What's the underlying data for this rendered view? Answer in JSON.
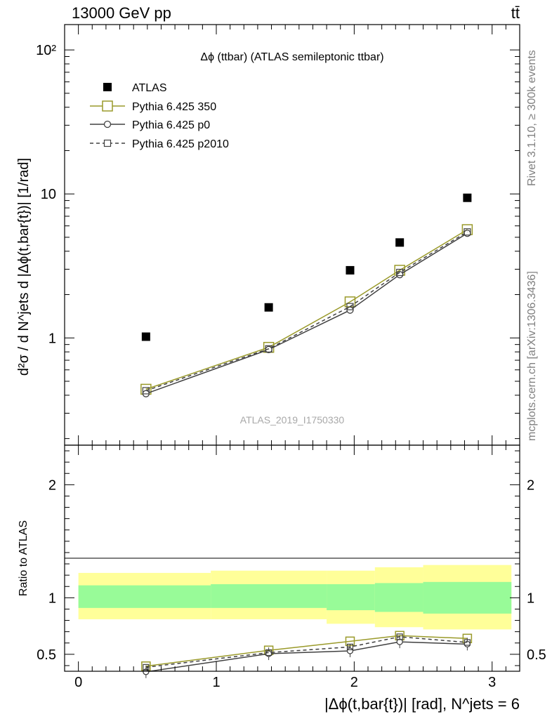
{
  "header": {
    "energy_label": "13000 GeV pp",
    "process_label": "tt̄"
  },
  "side_labels": {
    "rivet": "Rivet 3.1.10, ≥ 300k events",
    "mcplots": "mcplots.cern.ch [arXiv:1306.3436]"
  },
  "watermark": "ATLAS_2019_I1750330",
  "chart_data": [
    {
      "type": "scatter",
      "panel": "main",
      "title": "Δϕ (ttbar) (ATLAS semileptonic ttbar)",
      "ylabel": "d²σ / d N^jets d |Δϕ(t,bar{t})| [1/rad]",
      "yscale": "log",
      "xlim": [
        -0.1,
        3.2
      ],
      "ylim": [
        0.18,
        150
      ],
      "ytick_labels": [
        "1",
        "10",
        "10²"
      ],
      "legend_position": "top-left",
      "x": [
        0.49,
        1.38,
        1.97,
        2.33,
        2.82
      ],
      "series": [
        {
          "name": "ATLAS",
          "style": "data",
          "color": "#000000",
          "values": [
            1.02,
            1.63,
            2.95,
            4.6,
            9.4
          ]
        },
        {
          "name": "Pythia 6.425 350",
          "style": "line-open-square",
          "color": "#9a9a2a",
          "values": [
            0.44,
            0.86,
            1.78,
            2.95,
            5.65
          ]
        },
        {
          "name": "Pythia 6.425 p0",
          "style": "line-open-circle",
          "color": "#404040",
          "values": [
            0.41,
            0.83,
            1.56,
            2.75,
            5.33
          ]
        },
        {
          "name": "Pythia 6.425 p2010",
          "style": "dashed-open-square",
          "color": "#404040",
          "values": [
            0.43,
            0.84,
            1.65,
            2.85,
            5.45
          ]
        }
      ]
    },
    {
      "type": "line",
      "panel": "ratio",
      "ylabel": "Ratio to ATLAS",
      "xlabel": "|Δϕ(t,bar{t})| [rad], N^jets = 6",
      "xlim": [
        -0.1,
        3.2
      ],
      "ylim": [
        0.35,
        2.35
      ],
      "xtick_labels": [
        "0",
        "1",
        "2",
        "3"
      ],
      "ytick_labels": [
        "0.5",
        "1",
        "2"
      ],
      "bin_edges": [
        0.0,
        0.96,
        1.8,
        2.15,
        2.5,
        3.14
      ],
      "bands": {
        "stat": {
          "color": "#98fb98",
          "lower": [
            0.91,
            0.91,
            0.89,
            0.875,
            0.86
          ],
          "upper": [
            1.11,
            1.12,
            1.12,
            1.13,
            1.14
          ]
        },
        "total": {
          "color": "#ffff99",
          "lower": [
            0.81,
            0.81,
            0.77,
            0.74,
            0.72
          ],
          "upper": [
            1.22,
            1.24,
            1.24,
            1.27,
            1.29
          ]
        }
      },
      "x": [
        0.49,
        1.38,
        1.97,
        2.33,
        2.82
      ],
      "series": [
        {
          "name": "Pythia 6.425 350",
          "color": "#9a9a2a",
          "values": [
            0.395,
            0.535,
            0.615,
            0.665,
            0.64
          ]
        },
        {
          "name": "Pythia 6.425 p0",
          "color": "#404040",
          "values": [
            0.345,
            0.505,
            0.53,
            0.61,
            0.59
          ]
        },
        {
          "name": "Pythia 6.425 p2010",
          "color": "#404040",
          "values": [
            0.385,
            0.515,
            0.565,
            0.655,
            0.605
          ]
        }
      ]
    }
  ]
}
